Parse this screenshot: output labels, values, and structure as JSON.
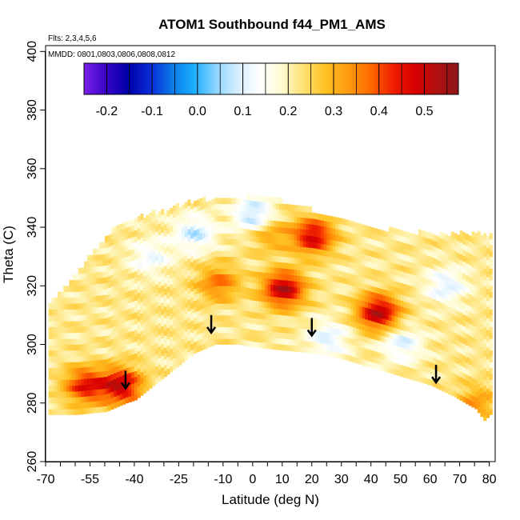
{
  "chart_data": {
    "type": "heatmap",
    "title": "ATOM1 Southbound f44_PM1_AMS",
    "annotations": [
      "Flts: 2,3,4,5,6",
      "MMDD: 0801,0803,0806,0808,0812"
    ],
    "xlabel": "Latitude (deg N)",
    "ylabel": "Theta (C)",
    "xlim": [
      -70,
      82
    ],
    "ylim": [
      260,
      402
    ],
    "xticks": [
      -70,
      -55,
      -40,
      -25,
      -10,
      0,
      10,
      20,
      30,
      40,
      50,
      60,
      70,
      80
    ],
    "xtick_labels": [
      "-70",
      "-55",
      "-40",
      "-25",
      "-10",
      "0",
      "10",
      "20",
      "30",
      "40",
      "50",
      "60",
      "70",
      "80"
    ],
    "xticks_minor_step": 5,
    "yticks": [
      260,
      280,
      300,
      320,
      340,
      360,
      380,
      400
    ],
    "ytick_labels": [
      "260",
      "280",
      "300",
      "320",
      "340",
      "360",
      "380",
      "400"
    ],
    "colorbar": {
      "range": [
        -0.25,
        0.575
      ],
      "ticks": [
        -0.2,
        -0.1,
        0.0,
        0.1,
        0.2,
        0.3,
        0.4,
        0.5
      ],
      "tick_labels": [
        "-0.2",
        "-0.1",
        "0.0",
        "0.1",
        "0.2",
        "0.3",
        "0.4",
        "0.5"
      ],
      "colors": [
        "#7a1fe8",
        "#3a05c8",
        "#0000a8",
        "#0a2ad8",
        "#0a7ae8",
        "#1ab0ff",
        "#8fd4ff",
        "#d8efff",
        "#ffffff",
        "#fffbd0",
        "#ffe070",
        "#ffc020",
        "#ff9a10",
        "#ff6a00",
        "#f02000",
        "#d80000",
        "#b01010",
        "#8c1818"
      ]
    },
    "tropopause_markers": [
      {
        "lat": -43,
        "theta": 285
      },
      {
        "lat": -14,
        "theta": 304
      },
      {
        "lat": 20,
        "theta": 303
      },
      {
        "lat": 62,
        "theta": 287
      }
    ],
    "coverage_top": [
      [
        -69,
        314
      ],
      [
        -62,
        321
      ],
      [
        -55,
        330
      ],
      [
        -47,
        339
      ],
      [
        -38,
        343
      ],
      [
        -30,
        345
      ],
      [
        -22,
        348
      ],
      [
        -12,
        349
      ],
      [
        -5,
        349
      ],
      [
        0,
        350
      ],
      [
        5,
        350
      ],
      [
        10,
        348
      ],
      [
        15,
        346
      ],
      [
        20,
        345
      ],
      [
        25,
        343
      ],
      [
        30,
        342
      ],
      [
        40,
        339
      ],
      [
        50,
        338
      ],
      [
        60,
        337
      ],
      [
        70,
        337
      ],
      [
        78,
        337
      ],
      [
        80,
        337
      ]
    ],
    "coverage_bottom": [
      [
        -69,
        276
      ],
      [
        -60,
        276
      ],
      [
        -50,
        277
      ],
      [
        -43,
        280
      ],
      [
        -40,
        281
      ],
      [
        -30,
        289
      ],
      [
        -20,
        297
      ],
      [
        -13,
        300
      ],
      [
        -5,
        300
      ],
      [
        0,
        299
      ],
      [
        10,
        298
      ],
      [
        20,
        297
      ],
      [
        30,
        295
      ],
      [
        40,
        292
      ],
      [
        50,
        289
      ],
      [
        60,
        286
      ],
      [
        68,
        282
      ],
      [
        75,
        278
      ],
      [
        78,
        274
      ],
      [
        80,
        276
      ]
    ],
    "hotspots": [
      {
        "lat": -57,
        "theta": 286,
        "value": 0.45
      },
      {
        "lat": -45,
        "theta": 286,
        "value": 0.5
      },
      {
        "lat": -12,
        "theta": 321,
        "value": 0.37
      },
      {
        "lat": 10,
        "theta": 319,
        "value": 0.52
      },
      {
        "lat": 20,
        "theta": 337,
        "value": 0.48
      },
      {
        "lat": 42,
        "theta": 311,
        "value": 0.52
      },
      {
        "lat": 5,
        "theta": 338,
        "value": 0.33
      },
      {
        "lat": 75,
        "theta": 280,
        "value": 0.33
      }
    ],
    "coldspots": [
      {
        "lat": -20,
        "theta": 338,
        "value": 0.08
      },
      {
        "lat": 0,
        "theta": 344,
        "value": 0.05
      },
      {
        "lat": 25,
        "theta": 302,
        "value": 0.1
      },
      {
        "lat": 50,
        "theta": 300,
        "value": 0.1
      },
      {
        "lat": 65,
        "theta": 320,
        "value": 0.1
      },
      {
        "lat": -35,
        "theta": 330,
        "value": 0.12
      }
    ],
    "background_value": 0.22
  }
}
